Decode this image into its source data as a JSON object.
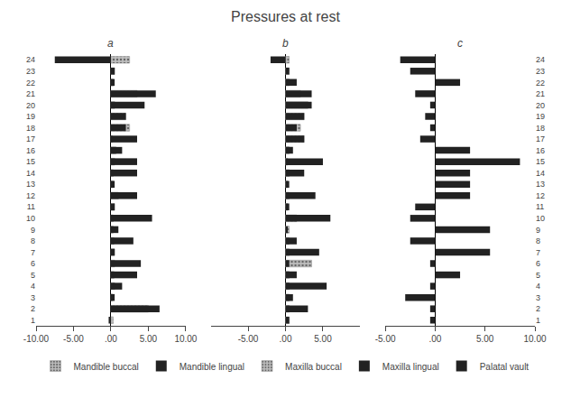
{
  "title": "Pressures at rest",
  "legend": "bottom",
  "chart_data": [
    {
      "type": "bar",
      "title": "a",
      "orientation": "horizontal",
      "grid": false,
      "categories": [
        "1",
        "2",
        "3",
        "4",
        "5",
        "6",
        "7",
        "8",
        "9",
        "10",
        "11",
        "12",
        "13",
        "14",
        "15",
        "16",
        "17",
        "18",
        "19",
        "20",
        "21",
        "22",
        "23",
        "24"
      ],
      "xlim": [
        -10,
        10
      ],
      "xticks": [
        {
          "value": -10,
          "label": "-10.00"
        },
        {
          "value": -5,
          "label": "-5.00"
        },
        {
          "value": 0,
          "label": ".00"
        },
        {
          "value": 5,
          "label": "5.00"
        },
        {
          "value": 10,
          "label": "10.00"
        }
      ],
      "series": [
        {
          "name": "Mandible buccal",
          "color": "#bebebe",
          "marker": "dots",
          "values": [
            0.3,
            5.0,
            0.2,
            0.5,
            0.4,
            0.5,
            0.5,
            0.4,
            0.3,
            0.3,
            0.5,
            1.0,
            0.3,
            0.3,
            0.5,
            0.7,
            0.2,
            2.5,
            2.0,
            0.5,
            3.5,
            0.3,
            0.5,
            2.5
          ]
        },
        {
          "name": "Mandible lingual",
          "color": "#222222",
          "values": [
            -0.3,
            6.5,
            0.5,
            1.5,
            3.5,
            4.0,
            0.5,
            3.0,
            1.0,
            5.5,
            0.5,
            3.5,
            0.5,
            3.5,
            3.5,
            1.5,
            3.5,
            2.0,
            2.0,
            4.5,
            6.0,
            0.5,
            0.5,
            -7.5
          ]
        }
      ]
    },
    {
      "type": "bar",
      "title": "b",
      "orientation": "horizontal",
      "grid": false,
      "tick_labels": "x",
      "categories": [
        "1",
        "2",
        "3",
        "4",
        "5",
        "6",
        "7",
        "8",
        "9",
        "10",
        "11",
        "12",
        "13",
        "14",
        "15",
        "16",
        "17",
        "18",
        "19",
        "20",
        "21",
        "22",
        "23",
        "24"
      ],
      "xlim": [
        -10,
        10
      ],
      "xticks": [
        {
          "value": -5,
          "label": "-5.00"
        },
        {
          "value": 0,
          "label": ".00"
        },
        {
          "value": 5,
          "label": "5.00"
        }
      ],
      "series": [
        {
          "name": "Maxilla buccal",
          "color": "#bebebe",
          "marker": "dots",
          "values": [
            0.5,
            0.5,
            0.5,
            0.5,
            0.5,
            3.5,
            0.5,
            0.5,
            0.5,
            1.5,
            0.3,
            0.5,
            0.3,
            0.5,
            0.3,
            0.5,
            2.5,
            2.0,
            2.5,
            3.0,
            2.0,
            0.5,
            0.5,
            0.5
          ]
        },
        {
          "name": "Maxilla lingual",
          "color": "#222222",
          "values": [
            0.5,
            3.0,
            1.0,
            5.5,
            1.5,
            0.5,
            4.5,
            1.5,
            0.3,
            6.0,
            0.5,
            4.0,
            0.5,
            2.5,
            5.0,
            1.0,
            2.5,
            1.5,
            2.5,
            3.5,
            3.5,
            1.5,
            0.5,
            -2.0
          ]
        }
      ]
    },
    {
      "type": "bar",
      "title": "c",
      "orientation": "horizontal",
      "grid": false,
      "categories": [
        "1",
        "2",
        "3",
        "4",
        "5",
        "6",
        "7",
        "8",
        "9",
        "10",
        "11",
        "12",
        "13",
        "14",
        "15",
        "16",
        "17",
        "18",
        "19",
        "20",
        "21",
        "22",
        "23",
        "24"
      ],
      "xlim": [
        -5,
        10
      ],
      "xticks": [
        {
          "value": -5,
          "label": "-5.00"
        },
        {
          "value": 0,
          "label": ".00"
        },
        {
          "value": 5,
          "label": "5.00"
        },
        {
          "value": 10,
          "label": "10.00"
        }
      ],
      "series": [
        {
          "name": "Palatal vault",
          "color": "#222222",
          "values": [
            -0.5,
            -0.5,
            -3.0,
            -0.5,
            2.5,
            -0.5,
            5.5,
            -2.5,
            5.5,
            -2.5,
            -2.0,
            3.5,
            3.5,
            3.5,
            8.5,
            3.5,
            -1.5,
            -0.5,
            -1.0,
            -0.5,
            -2.0,
            2.5,
            -2.5,
            -3.5
          ]
        }
      ]
    }
  ]
}
